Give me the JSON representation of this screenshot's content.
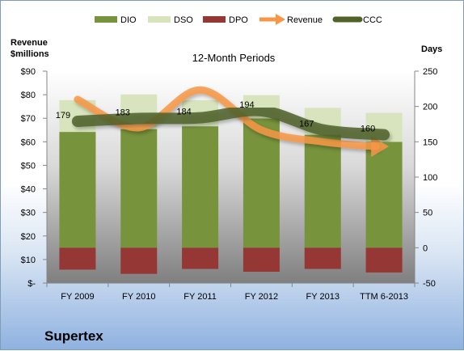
{
  "company": "Supertex",
  "chart_data": {
    "type": "bar",
    "title": "12-Month Periods",
    "ylabel_left": [
      "Revenue",
      "$millions"
    ],
    "ylabel_right": "Days",
    "categories": [
      "FY 2009",
      "FY 2010",
      "FY 2011",
      "FY 2012",
      "FY 2013",
      "TTM 6-2013"
    ],
    "left_axis": {
      "min": 0,
      "max": 90,
      "step": 10,
      "tick_labels": [
        "$-",
        "$10",
        "$20",
        "$30",
        "$40",
        "$50",
        "$60",
        "$70",
        "$80",
        "$90"
      ]
    },
    "right_axis": {
      "min": -50,
      "max": 250,
      "step": 50,
      "tick_labels": [
        "-50",
        "0",
        "50",
        "100",
        "150",
        "200",
        "250"
      ]
    },
    "series": [
      {
        "name": "DIO",
        "type": "bar",
        "axis": "right",
        "color": "#77933c",
        "values": [
          164,
          168,
          172,
          183,
          160,
          150
        ]
      },
      {
        "name": "DSO",
        "type": "bar",
        "axis": "right",
        "color": "#d7e4bd",
        "values": [
          45,
          49,
          37,
          33,
          38,
          41
        ]
      },
      {
        "name": "DPO",
        "type": "bar",
        "axis": "right",
        "color": "#953735",
        "values": [
          -31,
          -37,
          -30,
          -34,
          -30,
          -35
        ]
      },
      {
        "name": "Revenue",
        "type": "line",
        "axis": "left",
        "color": "#f79646",
        "values": [
          78,
          66,
          82,
          65,
          60,
          58
        ]
      },
      {
        "name": "CCC",
        "type": "line",
        "axis": "right",
        "color": "#4f6228",
        "values": [
          179,
          183,
          184,
          194,
          167,
          160
        ]
      }
    ],
    "data_labels": [
      "179",
      "183",
      "184",
      "194",
      "167",
      "160"
    ],
    "legend_position": "top",
    "grid": false
  }
}
